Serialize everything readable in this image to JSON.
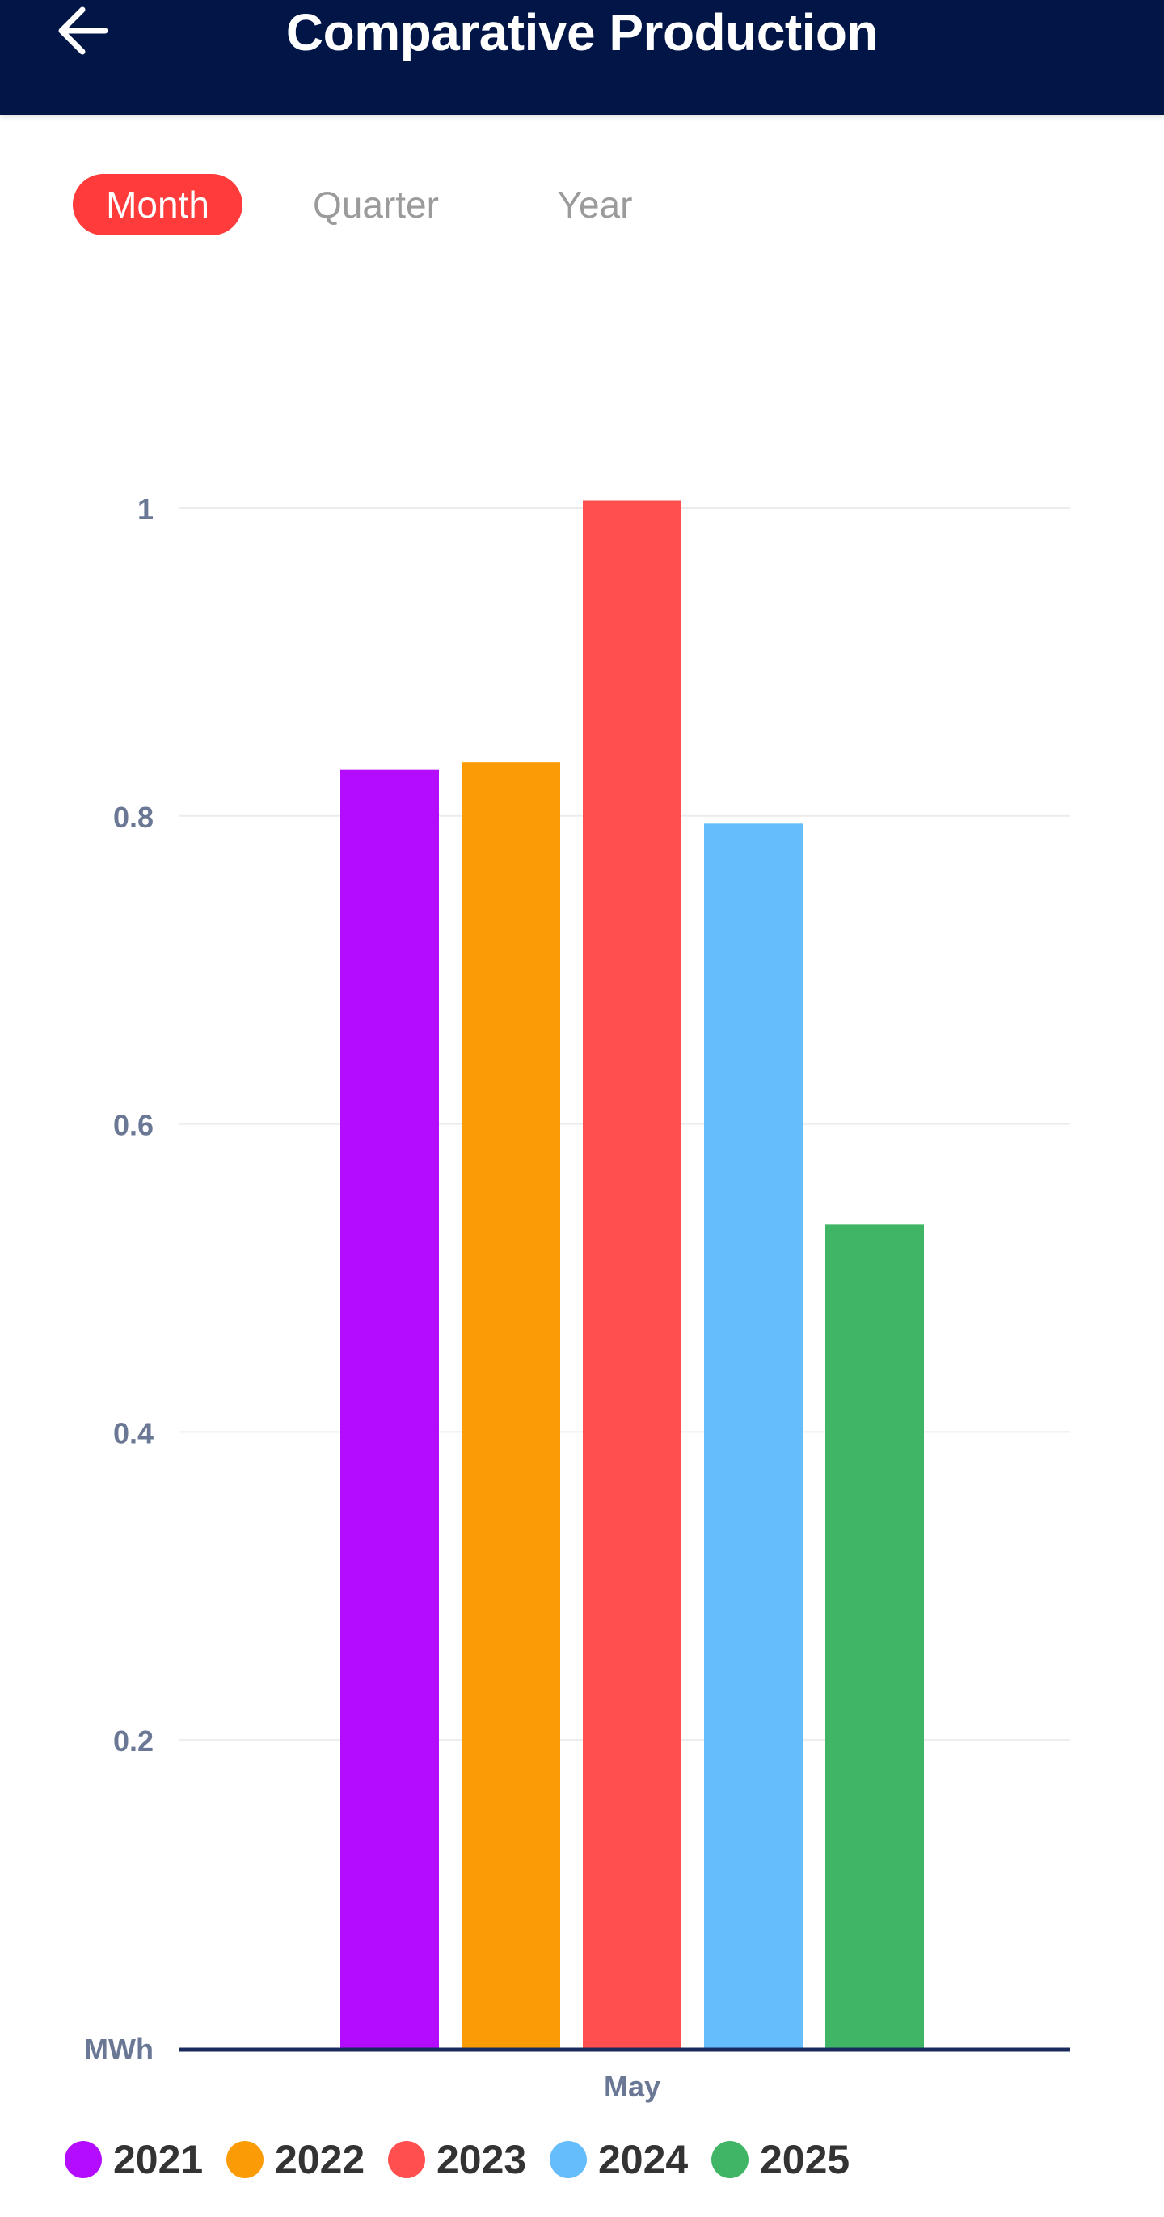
{
  "header": {
    "title": "Comparative Production",
    "back_icon": "arrow-left-icon"
  },
  "tabs": [
    {
      "label": "Month",
      "active": true
    },
    {
      "label": "Quarter",
      "active": false
    },
    {
      "label": "Year",
      "active": false
    }
  ],
  "colors": {
    "header_bg": "#011547",
    "tab_active": "#ff3b3b",
    "axis": "#1b2a5c",
    "grid": "#ececec",
    "tick_text": "#6b7895"
  },
  "chart_data": {
    "type": "bar",
    "categories": [
      "May"
    ],
    "series": [
      {
        "name": "2021",
        "color": "#b30cff",
        "values": [
          0.83
        ]
      },
      {
        "name": "2022",
        "color": "#fb9c07",
        "values": [
          0.835
        ]
      },
      {
        "name": "2023",
        "color": "#ff4f4f",
        "values": [
          1.005
        ]
      },
      {
        "name": "2024",
        "color": "#66bdfc",
        "values": [
          0.795
        ]
      },
      {
        "name": "2025",
        "color": "#41b566",
        "values": [
          0.535
        ]
      }
    ],
    "yticks": [
      "0.2",
      "0.4",
      "0.6",
      "0.8",
      "1"
    ],
    "ylabel": "MWh",
    "ylim": [
      0,
      1
    ],
    "grid": true,
    "legend": "bottom"
  }
}
